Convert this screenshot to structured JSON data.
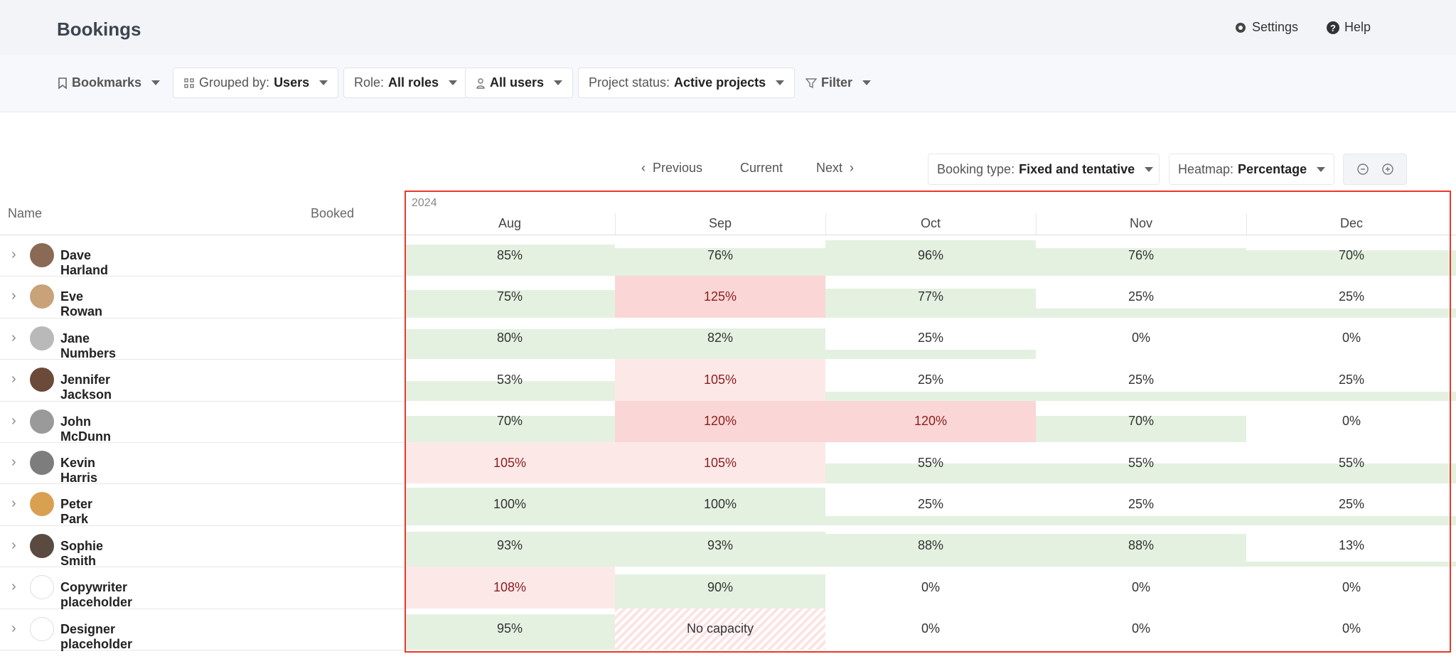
{
  "header": {
    "title": "Bookings",
    "settings": "Settings",
    "help": "Help"
  },
  "toolbar": {
    "bookmarks": "Bookmarks",
    "grouped_label": "Grouped by:",
    "grouped_value": "Users",
    "role_label": "Role:",
    "role_value": "All roles",
    "users": "All users",
    "status_label": "Project status:",
    "status_value": "Active projects",
    "filter": "Filter"
  },
  "nav": {
    "previous": "Previous",
    "current": "Current",
    "next": "Next",
    "booking_type_label": "Booking type:",
    "booking_type_value": "Fixed and tentative",
    "heatmap_label": "Heatmap:",
    "heatmap_value": "Percentage"
  },
  "table": {
    "name_header": "Name",
    "booked_header": "Booked",
    "year": "2024",
    "months": [
      "Aug",
      "Sep",
      "Oct",
      "Nov",
      "Dec"
    ],
    "rows": [
      {
        "name": "Dave Harland",
        "cells": [
          "85%",
          "76%",
          "96%",
          "76%",
          "70%"
        ]
      },
      {
        "name": "Eve Rowan",
        "cells": [
          "75%",
          "125%",
          "77%",
          "25%",
          "25%"
        ]
      },
      {
        "name": "Jane Numbers",
        "cells": [
          "80%",
          "82%",
          "25%",
          "0%",
          "0%"
        ]
      },
      {
        "name": "Jennifer Jackson",
        "cells": [
          "53%",
          "105%",
          "25%",
          "25%",
          "25%"
        ]
      },
      {
        "name": "John McDunn",
        "cells": [
          "70%",
          "120%",
          "120%",
          "70%",
          "0%"
        ]
      },
      {
        "name": "Kevin Harris",
        "cells": [
          "105%",
          "105%",
          "55%",
          "55%",
          "55%"
        ]
      },
      {
        "name": "Peter Park",
        "cells": [
          "100%",
          "100%",
          "25%",
          "25%",
          "25%"
        ]
      },
      {
        "name": "Sophie Smith",
        "cells": [
          "93%",
          "93%",
          "88%",
          "88%",
          "13%"
        ]
      },
      {
        "name": "Copywriter placeholder",
        "cells": [
          "108%",
          "90%",
          "0%",
          "0%",
          "0%"
        ]
      },
      {
        "name": "Designer placeholder",
        "cells": [
          "95%",
          "No capacity",
          "0%",
          "0%",
          "0%"
        ]
      }
    ]
  }
}
